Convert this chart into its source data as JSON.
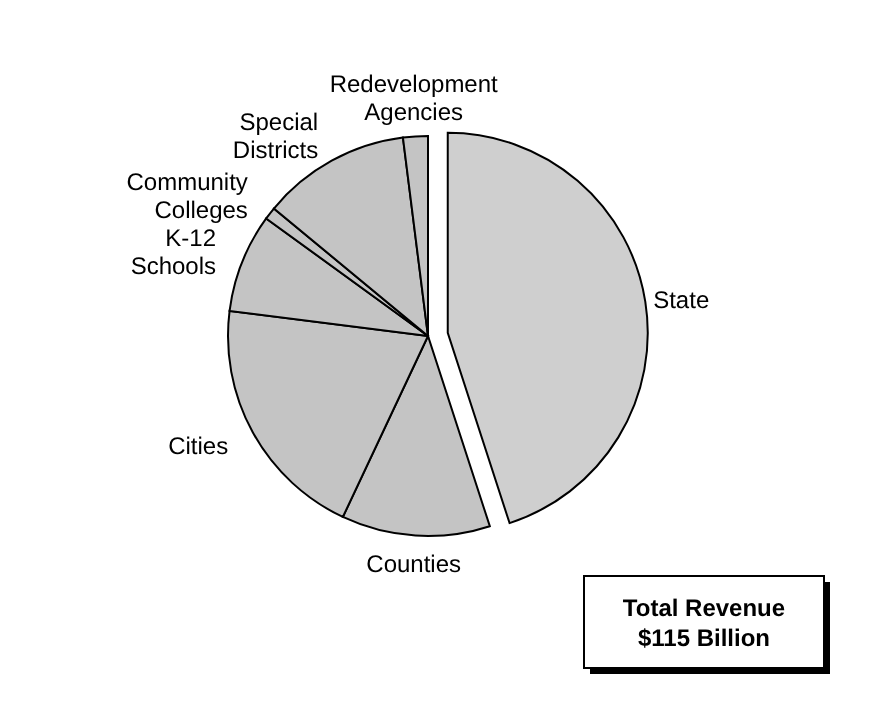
{
  "chart_data": {
    "type": "pie",
    "categories": [
      "State",
      "Counties",
      "Cities",
      "K-12 Schools",
      "Community Colleges",
      "Special Districts",
      "Redevelopment Agencies"
    ],
    "values": [
      45,
      12,
      20,
      8,
      1,
      12,
      2
    ],
    "colors": [
      "#cfcfcf",
      "#c4c4c4",
      "#c4c4c4",
      "#c4c4c4",
      "#c4c4c4",
      "#c4c4c4",
      "#c4c4c4"
    ],
    "annotations": [
      "Total Revenue\n$115 Billion"
    ]
  }
}
